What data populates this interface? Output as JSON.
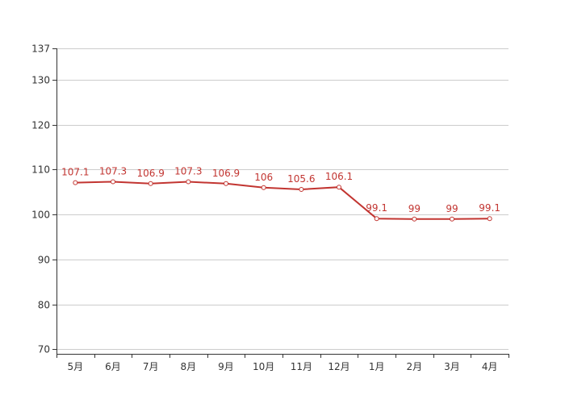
{
  "chart_data": {
    "type": "line",
    "categories": [
      "5月",
      "6月",
      "7月",
      "8月",
      "9月",
      "10月",
      "11月",
      "12月",
      "1月",
      "2月",
      "3月",
      "4月"
    ],
    "series": [
      {
        "values": [
          107.1,
          107.3,
          106.9,
          107.3,
          106.9,
          106,
          105.6,
          106.1,
          99.1,
          99,
          99,
          99.1
        ],
        "color": "#c23531"
      }
    ],
    "data_labels": [
      "107.1",
      "107.3",
      "106.9",
      "107.3",
      "106.9",
      "106",
      "105.6",
      "106.1",
      "99.1",
      "99",
      "99",
      "99.1"
    ],
    "y_ticks": [
      70,
      80,
      90,
      100,
      110,
      120,
      130,
      137
    ],
    "y_tick_labels": [
      "70",
      "80",
      "90",
      "100",
      "110",
      "120",
      "130",
      "137"
    ],
    "ylim": [
      69,
      137
    ],
    "grid": true,
    "legend": "none",
    "title": "",
    "xlabel": "",
    "ylabel": ""
  }
}
